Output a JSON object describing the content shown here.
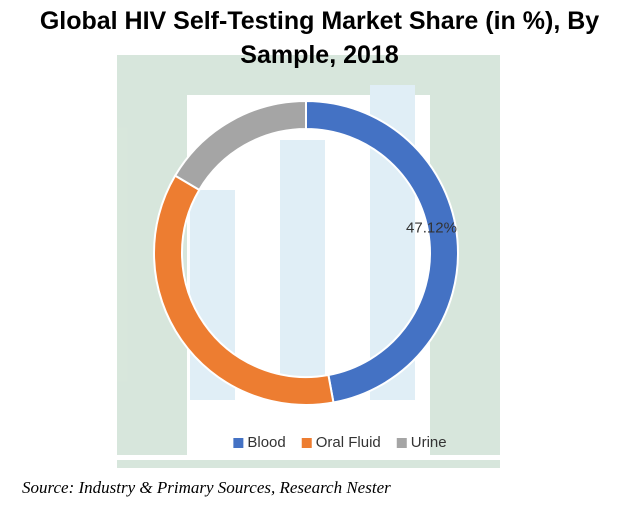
{
  "chart_data": {
    "type": "donut",
    "title": "Global HIV Self-Testing Market Share (in %), By Sample, 2018",
    "categories": [
      "Blood",
      "Oral Fluid",
      "Urine"
    ],
    "values": [
      47.12,
      36.4,
      16.5
    ],
    "value_labels": [
      "47.12%",
      null,
      null
    ],
    "colors": [
      "#4472c4",
      "#ed7d31",
      "#a5a5a5"
    ],
    "legend": "bottom",
    "source": "Source: Industry & Primary Sources, Research Nester"
  }
}
